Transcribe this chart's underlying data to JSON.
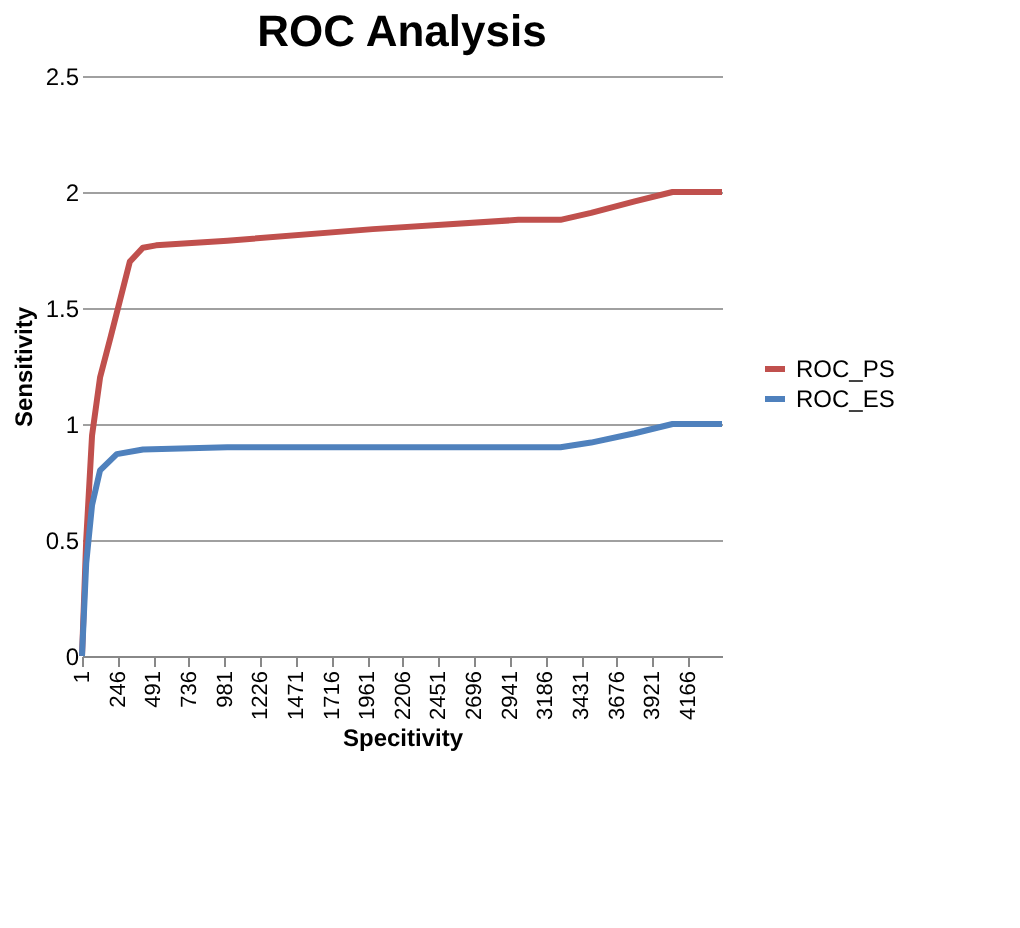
{
  "chart_data": {
    "type": "line",
    "title": "ROC Analysis",
    "xlabel": "Specitivity",
    "ylabel": "Sensitivity",
    "xlim": [
      1,
      4400
    ],
    "xticks": [
      1,
      246,
      491,
      736,
      981,
      1226,
      1471,
      1716,
      1961,
      2206,
      2451,
      2696,
      2941,
      3186,
      3431,
      3676,
      3921,
      4166
    ],
    "ylim": [
      0,
      2.5
    ],
    "yticks": [
      0,
      0.5,
      1,
      1.5,
      2,
      2.5
    ],
    "grid": "y",
    "legend": "right",
    "marker": "none",
    "line_style": "solid",
    "series": [
      {
        "name": "ROC_PS",
        "color": "#c0504d",
        "x": [
          1,
          30,
          70,
          125,
          200,
          330,
          420,
          510,
          1000,
          2000,
          3000,
          3290,
          3500,
          3800,
          4060,
          4400
        ],
        "values": [
          0,
          0.5,
          0.95,
          1.2,
          1.38,
          1.7,
          1.76,
          1.77,
          1.79,
          1.84,
          1.88,
          1.88,
          1.91,
          1.96,
          2.0,
          2.0
        ]
      },
      {
        "name": "ROC_ES",
        "color": "#4f81bd",
        "x": [
          1,
          30,
          70,
          125,
          240,
          420,
          1000,
          2000,
          3000,
          3290,
          3500,
          3800,
          4060,
          4400
        ],
        "values": [
          0,
          0.4,
          0.65,
          0.8,
          0.87,
          0.89,
          0.9,
          0.9,
          0.9,
          0.9,
          0.92,
          0.96,
          1.0,
          1.0
        ]
      }
    ]
  }
}
